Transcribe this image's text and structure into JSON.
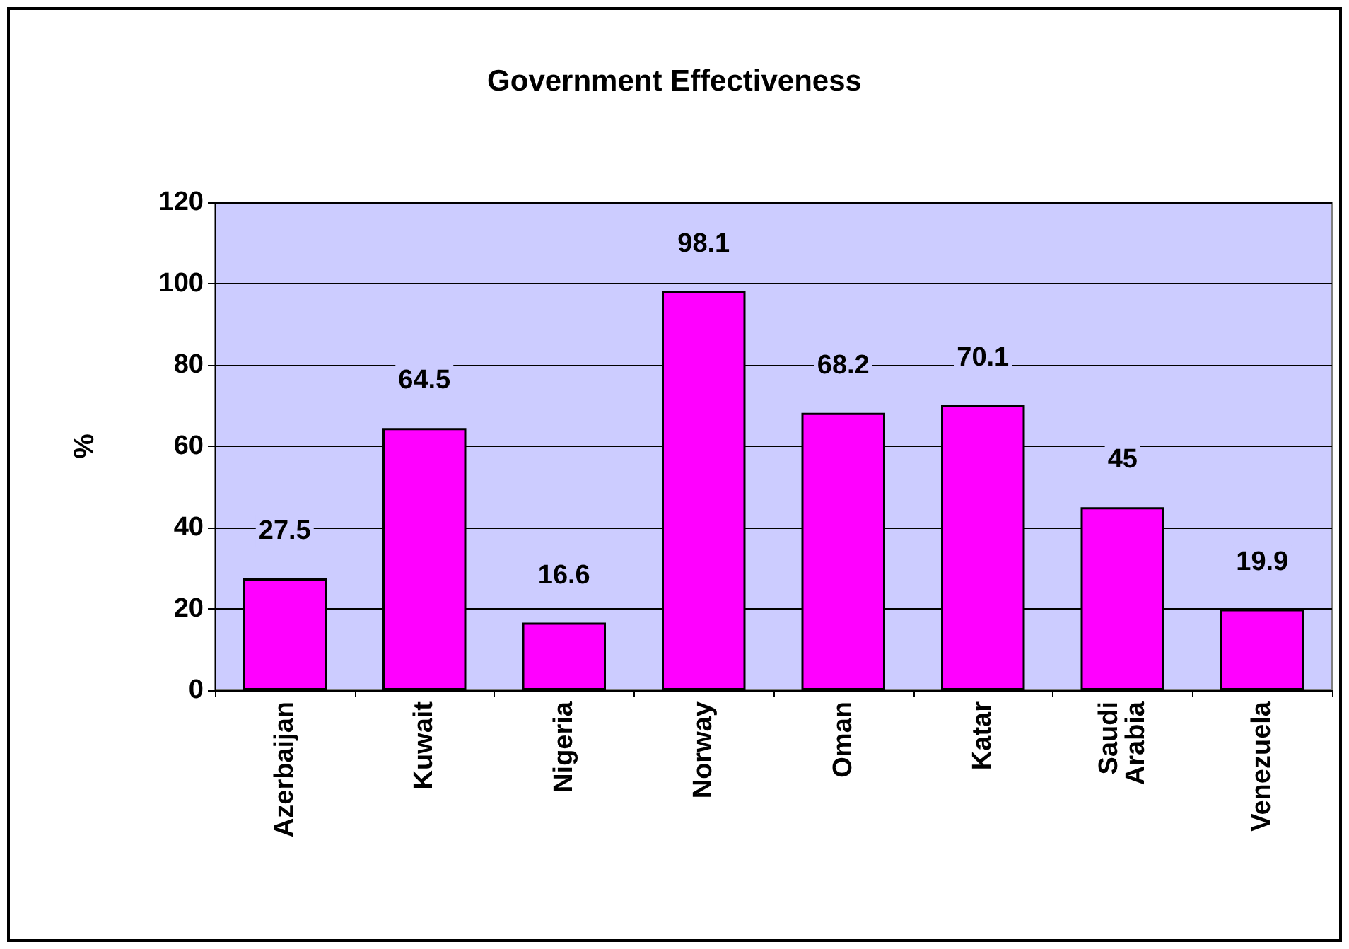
{
  "chart_data": {
    "type": "bar",
    "title": "Government Effectiveness",
    "ylabel": "%",
    "categories": [
      "Azerbaijan",
      "Kuwait",
      "Nigeria",
      "Norway",
      "Oman",
      "Katar",
      "Saudi Arabia",
      "Venezuela"
    ],
    "values": [
      27.5,
      64.5,
      16.6,
      98.1,
      68.2,
      70.1,
      45,
      19.9
    ],
    "color": "#ff00ff",
    "ylim": [
      0,
      120
    ],
    "yticks": [
      0,
      20,
      40,
      60,
      80,
      100,
      120
    ],
    "grid": "y",
    "data_labels": true
  }
}
